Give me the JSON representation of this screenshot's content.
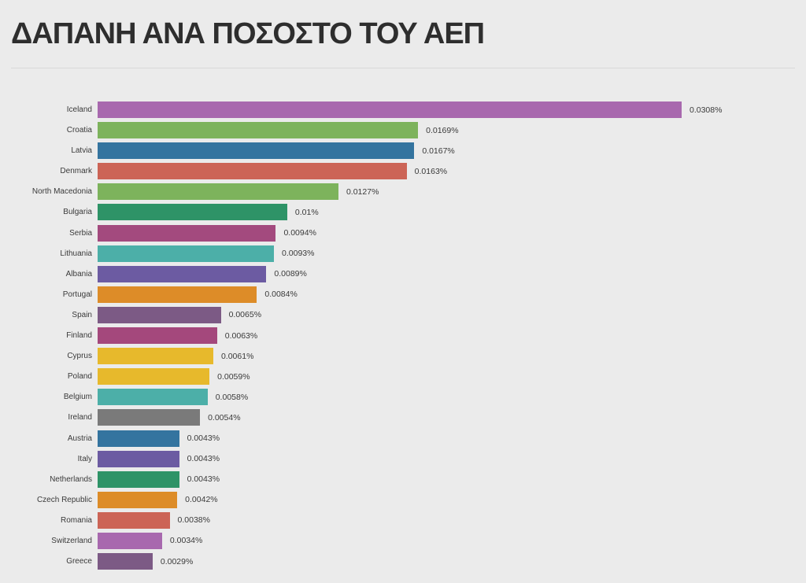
{
  "header": {
    "title": "ΔΑΠΑΝΗ ΑΝΑ ΠΟΣΟΣΤΟ ΤΟΥ ΑΕΠ"
  },
  "colors": {
    "background": "#ebebeb",
    "divider": "#d9d9d9",
    "title_text": "#2e2e2e",
    "label_text": "#3a3a3a"
  },
  "chart_data": {
    "type": "bar",
    "orientation": "horizontal",
    "title": "ΔΑΠΑΝΗ ΑΝΑ ΠΟΣΟΣΤΟ ΤΟΥ ΑΕΠ",
    "unit": "%",
    "xlim": [
      0,
      0.0308
    ],
    "grid": false,
    "legend": false,
    "categories": [
      "Iceland",
      "Croatia",
      "Latvia",
      "Denmark",
      "North Macedonia",
      "Bulgaria",
      "Serbia",
      "Lithuania",
      "Albania",
      "Portugal",
      "Spain",
      "Finland",
      "Cyprus",
      "Poland",
      "Belgium",
      "Ireland",
      "Austria",
      "Italy",
      "Netherlands",
      "Czech Republic",
      "Romania",
      "Switzerland",
      "Greece"
    ],
    "values": [
      0.0308,
      0.0169,
      0.0167,
      0.0163,
      0.0127,
      0.01,
      0.0094,
      0.0093,
      0.0089,
      0.0084,
      0.0065,
      0.0063,
      0.0061,
      0.0059,
      0.0058,
      0.0054,
      0.0043,
      0.0043,
      0.0043,
      0.0042,
      0.0038,
      0.0034,
      0.0029
    ],
    "value_labels": [
      "0.0308%",
      "0.0169%",
      "0.0167%",
      "0.0163%",
      "0.0127%",
      "0.01%",
      "0.0094%",
      "0.0093%",
      "0.0089%",
      "0.0084%",
      "0.0065%",
      "0.0063%",
      "0.0061%",
      "0.0059%",
      "0.0058%",
      "0.0054%",
      "0.0043%",
      "0.0043%",
      "0.0043%",
      "0.0042%",
      "0.0038%",
      "0.0034%",
      "0.0029%"
    ],
    "bar_colors": [
      "#a868ae",
      "#7db35c",
      "#34749f",
      "#cc6456",
      "#7db35c",
      "#2e9367",
      "#a34a7e",
      "#4cafa8",
      "#6c5ba2",
      "#dd8c28",
      "#7c5a85",
      "#a4487c",
      "#e7b92c",
      "#e7b92c",
      "#4cafa8",
      "#7a7a7a",
      "#34749f",
      "#6c5ba2",
      "#2e9367",
      "#dd8c28",
      "#cc6456",
      "#a868ae",
      "#7c5a85"
    ]
  }
}
